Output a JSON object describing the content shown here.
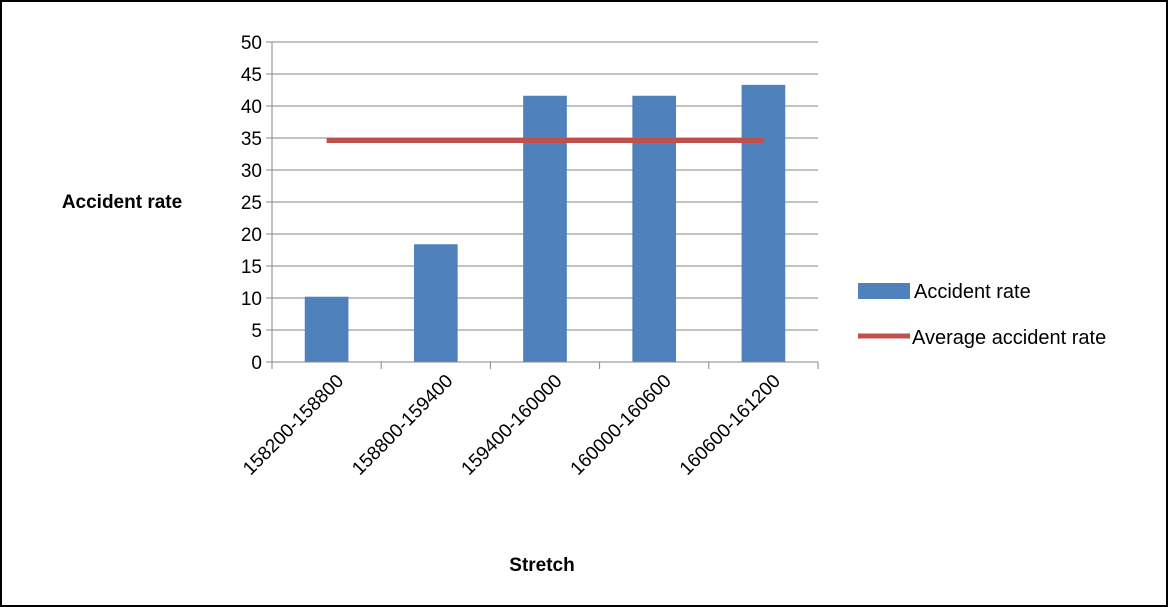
{
  "chart_data": {
    "type": "bar",
    "categories": [
      "158200-158800",
      "158800-159400",
      "159400-160000",
      "160000-160600",
      "160600-161200"
    ],
    "series": [
      {
        "name": "Accident rate",
        "type": "bar",
        "values": [
          10.2,
          18.4,
          41.6,
          41.6,
          43.3
        ],
        "color": "#4F81BD"
      },
      {
        "name": "Average accident rate",
        "type": "line",
        "values": [
          34.6,
          34.6,
          34.6,
          34.6,
          34.6
        ],
        "color": "#C0504D"
      }
    ],
    "xlabel": "Stretch",
    "ylabel": "Accident rate",
    "ylim": [
      0,
      50
    ],
    "yticks": [
      0,
      5,
      10,
      15,
      20,
      25,
      30,
      35,
      40,
      45,
      50
    ],
    "grid": true,
    "legend_position": "right"
  }
}
